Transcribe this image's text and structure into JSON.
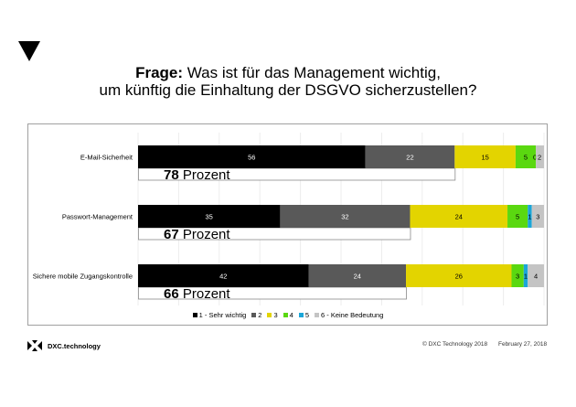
{
  "header": {
    "title_bold": "Frage:",
    "title_rest": " Was ist für das Management wichtig,",
    "title_line2": "um künftig die Einhaltung der DSGVO sicherzustellen?"
  },
  "chart_data": {
    "type": "bar",
    "orientation": "horizontal-stacked-100",
    "title": "Frage: Was ist für das Management wichtig, um künftig die Einhaltung der DSGVO sicherzustellen?",
    "xlim": [
      0,
      100
    ],
    "grid": true,
    "legend_position": "bottom",
    "categories": [
      "E-Mail-Sicherheit",
      "Passwort-Management",
      "Sichere mobile Zugangskontrolle"
    ],
    "series": [
      {
        "name": "1 - Sehr wichtig",
        "color": "#000000",
        "label_color": "#ffffff",
        "values": [
          56,
          35,
          42
        ]
      },
      {
        "name": "2",
        "color": "#595959",
        "label_color": "#ffffff",
        "values": [
          22,
          32,
          24
        ]
      },
      {
        "name": "3",
        "color": "#e3d400",
        "label_color": "#000000",
        "values": [
          15,
          24,
          26
        ]
      },
      {
        "name": "4",
        "color": "#5ad810",
        "label_color": "#000000",
        "values": [
          5,
          5,
          3
        ]
      },
      {
        "name": "5",
        "color": "#1ba6d8",
        "label_color": "#000000",
        "values": [
          0,
          1,
          1
        ]
      },
      {
        "name": "6 - Keine Bedeutung",
        "color": "#c4c4c4",
        "label_color": "#000000",
        "values": [
          2,
          3,
          4
        ]
      }
    ],
    "value_labels": [
      [
        "56",
        "22",
        "15",
        "5",
        "0",
        "2"
      ],
      [
        "35",
        "32",
        "24",
        "5",
        "1",
        "3"
      ],
      [
        "42",
        "24",
        "26",
        "3",
        "1",
        "4"
      ]
    ],
    "annotations": [
      {
        "number": "78",
        "text": " Prozent",
        "value": 78
      },
      {
        "number": "67",
        "text": " Prozent",
        "value": 67
      },
      {
        "number": "66",
        "text": " Prozent",
        "value": 66
      }
    ]
  },
  "footer": {
    "logo_text": "DXC.technology",
    "copyright": "© DXC Technology 2018",
    "date": "February 27, 2018"
  }
}
